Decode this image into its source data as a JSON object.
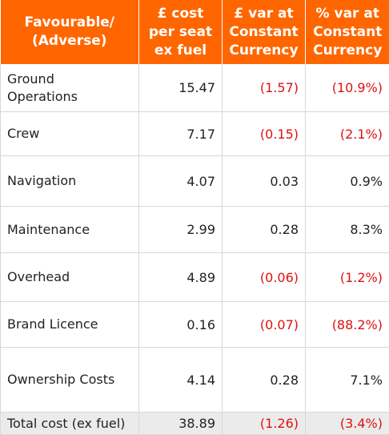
{
  "table": {
    "headers": [
      "Favourable/\n(Adverse)",
      "£ cost\nper seat\nex fuel",
      "£ var at\nConstant\nCurrency",
      "% var at\nConstant\nCurrency"
    ],
    "rows": [
      {
        "label": "Ground\nOperations",
        "cost": "15.47",
        "var_gbp": "(1.57)",
        "var_pct": "(10.9%)"
      },
      {
        "label": "Crew",
        "cost": "7.17",
        "var_gbp": "(0.15)",
        "var_pct": "(2.1%)"
      },
      {
        "label": "Navigation",
        "cost": "4.07",
        "var_gbp": "0.03",
        "var_pct": "0.9%"
      },
      {
        "label": "Maintenance",
        "cost": "2.99",
        "var_gbp": "0.28",
        "var_pct": "8.3%"
      },
      {
        "label": "Overhead",
        "cost": "4.89",
        "var_gbp": "(0.06)",
        "var_pct": "(1.2%)"
      },
      {
        "label": "Brand Licence",
        "cost": "0.16",
        "var_gbp": "(0.07)",
        "var_pct": "(88.2%)"
      },
      {
        "label": "Ownership Costs",
        "cost": "4.14",
        "var_gbp": "0.28",
        "var_pct": "7.1%"
      }
    ],
    "total": {
      "label": "Total cost (ex fuel)",
      "cost": "38.89",
      "var_gbp": "(1.26)",
      "var_pct": "(3.4%)"
    }
  },
  "colors": {
    "header_bg": "#ff6600",
    "header_text": "#ffffff",
    "negative_text": "#dd1111",
    "total_bg": "#ebebeb"
  }
}
